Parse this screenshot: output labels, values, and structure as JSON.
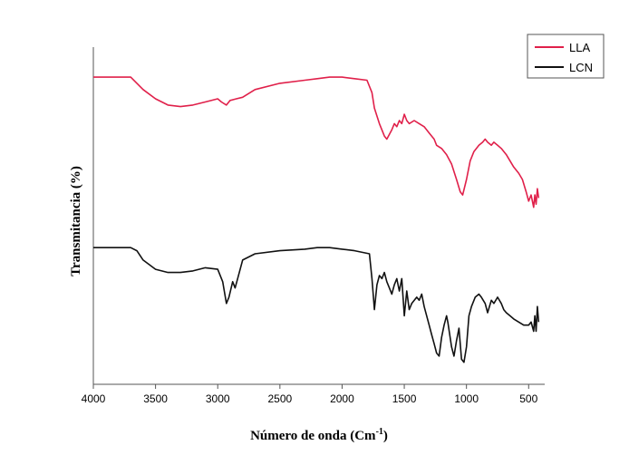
{
  "chart_data": {
    "type": "line",
    "xlabel": "Número de onda (Cm",
    "xlabel_sup": "-1",
    "xlabel_close": ")",
    "ylabel": "Transmitancia (%)",
    "xlim": [
      4000,
      400
    ],
    "x_reversed": true,
    "y_ticks_labeled": false,
    "x_ticks": [
      4000,
      3500,
      3000,
      2500,
      2000,
      1500,
      1000,
      500
    ],
    "legend_position": "top-right",
    "series": [
      {
        "name": "LLA",
        "color": "#e0204a",
        "points": [
          [
            4000,
            95
          ],
          [
            3700,
            95
          ],
          [
            3600,
            91
          ],
          [
            3500,
            88
          ],
          [
            3400,
            86
          ],
          [
            3300,
            85.5
          ],
          [
            3200,
            86
          ],
          [
            3100,
            87
          ],
          [
            3000,
            88
          ],
          [
            2970,
            87
          ],
          [
            2930,
            86
          ],
          [
            2900,
            87.5
          ],
          [
            2850,
            88
          ],
          [
            2800,
            88.5
          ],
          [
            2700,
            91
          ],
          [
            2500,
            93
          ],
          [
            2300,
            94
          ],
          [
            2200,
            94.5
          ],
          [
            2100,
            95
          ],
          [
            2000,
            95
          ],
          [
            1900,
            94.5
          ],
          [
            1800,
            94
          ],
          [
            1760,
            90
          ],
          [
            1740,
            85
          ],
          [
            1700,
            80
          ],
          [
            1660,
            76
          ],
          [
            1640,
            75
          ],
          [
            1600,
            78
          ],
          [
            1580,
            80
          ],
          [
            1560,
            79
          ],
          [
            1540,
            81
          ],
          [
            1520,
            80
          ],
          [
            1500,
            83
          ],
          [
            1480,
            81
          ],
          [
            1460,
            80
          ],
          [
            1420,
            81
          ],
          [
            1380,
            80
          ],
          [
            1340,
            79
          ],
          [
            1300,
            77
          ],
          [
            1260,
            75
          ],
          [
            1240,
            73
          ],
          [
            1200,
            72
          ],
          [
            1160,
            70
          ],
          [
            1120,
            67
          ],
          [
            1080,
            62
          ],
          [
            1050,
            58
          ],
          [
            1030,
            57
          ],
          [
            1000,
            62
          ],
          [
            970,
            68
          ],
          [
            940,
            71
          ],
          [
            900,
            73
          ],
          [
            870,
            74
          ],
          [
            850,
            75
          ],
          [
            830,
            74
          ],
          [
            800,
            73
          ],
          [
            780,
            74
          ],
          [
            750,
            73
          ],
          [
            720,
            72
          ],
          [
            680,
            70
          ],
          [
            650,
            68
          ],
          [
            620,
            66
          ],
          [
            580,
            64
          ],
          [
            550,
            62
          ],
          [
            520,
            58
          ],
          [
            500,
            55
          ],
          [
            480,
            57
          ],
          [
            460,
            53
          ],
          [
            450,
            57
          ],
          [
            440,
            54
          ],
          [
            430,
            59
          ],
          [
            420,
            56
          ]
        ]
      },
      {
        "name": "LCN",
        "color": "#111111",
        "points": [
          [
            4000,
            40
          ],
          [
            3700,
            40
          ],
          [
            3650,
            39
          ],
          [
            3600,
            36
          ],
          [
            3500,
            33
          ],
          [
            3400,
            32
          ],
          [
            3300,
            32
          ],
          [
            3200,
            32.5
          ],
          [
            3100,
            33.5
          ],
          [
            3000,
            33
          ],
          [
            2960,
            29
          ],
          [
            2930,
            22
          ],
          [
            2910,
            24
          ],
          [
            2880,
            29
          ],
          [
            2860,
            27
          ],
          [
            2840,
            30
          ],
          [
            2800,
            36
          ],
          [
            2700,
            38
          ],
          [
            2500,
            39
          ],
          [
            2300,
            39.5
          ],
          [
            2200,
            40
          ],
          [
            2100,
            40
          ],
          [
            2000,
            39.5
          ],
          [
            1900,
            39
          ],
          [
            1780,
            38
          ],
          [
            1760,
            30
          ],
          [
            1740,
            20
          ],
          [
            1720,
            28
          ],
          [
            1700,
            31
          ],
          [
            1680,
            30
          ],
          [
            1660,
            32
          ],
          [
            1640,
            29
          ],
          [
            1620,
            27
          ],
          [
            1600,
            25
          ],
          [
            1580,
            28
          ],
          [
            1560,
            30
          ],
          [
            1540,
            26
          ],
          [
            1520,
            30
          ],
          [
            1500,
            18
          ],
          [
            1480,
            26
          ],
          [
            1460,
            20
          ],
          [
            1440,
            22
          ],
          [
            1400,
            24
          ],
          [
            1380,
            23
          ],
          [
            1360,
            25
          ],
          [
            1340,
            21
          ],
          [
            1300,
            15
          ],
          [
            1280,
            12
          ],
          [
            1260,
            9
          ],
          [
            1240,
            6
          ],
          [
            1220,
            5
          ],
          [
            1200,
            11
          ],
          [
            1180,
            15
          ],
          [
            1160,
            18
          ],
          [
            1150,
            16
          ],
          [
            1120,
            8
          ],
          [
            1100,
            5
          ],
          [
            1080,
            10
          ],
          [
            1060,
            14
          ],
          [
            1040,
            4
          ],
          [
            1020,
            3
          ],
          [
            1000,
            8
          ],
          [
            980,
            18
          ],
          [
            960,
            21
          ],
          [
            930,
            24
          ],
          [
            900,
            25
          ],
          [
            880,
            24
          ],
          [
            850,
            22
          ],
          [
            830,
            19
          ],
          [
            800,
            23
          ],
          [
            780,
            22
          ],
          [
            750,
            24
          ],
          [
            720,
            22
          ],
          [
            700,
            20
          ],
          [
            680,
            19
          ],
          [
            650,
            18
          ],
          [
            620,
            17
          ],
          [
            580,
            16
          ],
          [
            540,
            15
          ],
          [
            500,
            15
          ],
          [
            480,
            16
          ],
          [
            460,
            13
          ],
          [
            450,
            18
          ],
          [
            440,
            13
          ],
          [
            430,
            21
          ],
          [
            420,
            16
          ]
        ]
      }
    ]
  }
}
